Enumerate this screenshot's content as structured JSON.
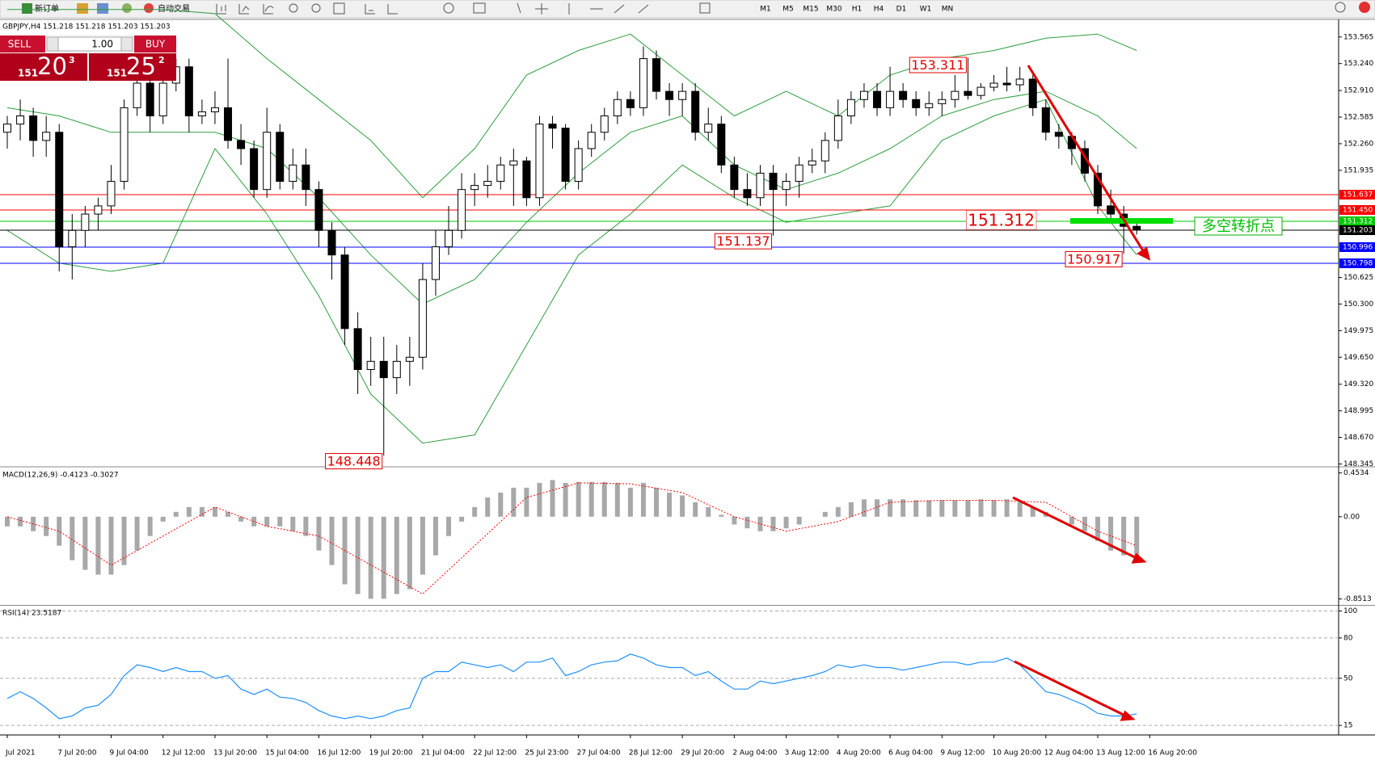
{
  "toolbar": {
    "new_order": "新订单",
    "auto_trading": "自动交易",
    "timeframes": [
      "M1",
      "M5",
      "M15",
      "M30",
      "H1",
      "H4",
      "D1",
      "W1",
      "MN"
    ]
  },
  "trade_panel": {
    "sell": "SELL",
    "lot": "1.00",
    "buy": "BUY",
    "bid": {
      "big": "151",
      "mid": "20",
      "small": "3"
    },
    "ask": {
      "big": "151",
      "mid": "25",
      "small": "2"
    }
  },
  "chart_data": [
    {
      "type": "candlestick",
      "title": "GBPJPY,H4  151.218 151.218 151.203 151.203",
      "categories": [
        "Jul 2021",
        null,
        null,
        null,
        "7 Jul 20:00",
        null,
        null,
        null,
        "9 Jul 04:00",
        null,
        null,
        null,
        "12 Jul 12:00",
        null,
        null,
        null,
        "13 Jul 20:00",
        null,
        null,
        null,
        "15 Jul 04:00",
        null,
        null,
        null,
        "16 Jul 12:00",
        null,
        null,
        null,
        "19 Jul 20:00",
        null,
        null,
        null,
        "21 Jul 04:00",
        null,
        null,
        null,
        "22 Jul 12:00",
        null,
        null,
        null,
        "25 Jul 23:00",
        null,
        null,
        null,
        "27 Jul 04:00",
        null,
        null,
        null,
        "28 Jul 12:00",
        null,
        null,
        null,
        "29 Jul 20:00",
        null,
        null,
        null,
        "2 Aug 04:00",
        null,
        null,
        null,
        "3 Aug 12:00",
        null,
        null,
        null,
        "4 Aug 20:00",
        null,
        null,
        null,
        "6 Aug 04:00",
        null,
        null,
        null,
        "9 Aug 12:00",
        null,
        null,
        null,
        "10 Aug 20:00",
        null,
        null,
        null,
        "12 Aug 04:00",
        null,
        null,
        null,
        "13 Aug 12:00",
        null,
        null,
        null,
        "16 Aug 20:00"
      ],
      "candles": [
        [
          152.4,
          152.6,
          152.2,
          152.5
        ],
        [
          152.5,
          152.8,
          152.3,
          152.6
        ],
        [
          152.6,
          152.7,
          152.1,
          152.3
        ],
        [
          152.3,
          152.6,
          152.1,
          152.4
        ],
        [
          152.4,
          152.5,
          150.7,
          151.0
        ],
        [
          151.0,
          151.4,
          150.6,
          151.2
        ],
        [
          151.2,
          151.5,
          151.0,
          151.4
        ],
        [
          151.4,
          151.6,
          151.2,
          151.5
        ],
        [
          151.5,
          152.0,
          151.4,
          151.8
        ],
        [
          151.8,
          152.8,
          151.7,
          152.7
        ],
        [
          152.7,
          153.4,
          152.6,
          153.0
        ],
        [
          153.0,
          153.1,
          152.4,
          152.6
        ],
        [
          152.6,
          153.2,
          152.5,
          153.0
        ],
        [
          153.0,
          153.3,
          152.9,
          153.2
        ],
        [
          153.2,
          153.3,
          152.4,
          152.6
        ],
        [
          152.6,
          152.8,
          152.5,
          152.65
        ],
        [
          152.65,
          152.9,
          152.5,
          152.7
        ],
        [
          152.7,
          153.3,
          152.2,
          152.3
        ],
        [
          152.3,
          152.5,
          152.0,
          152.2
        ],
        [
          152.2,
          152.3,
          151.6,
          151.7
        ],
        [
          151.7,
          152.7,
          151.6,
          152.4
        ],
        [
          152.4,
          152.5,
          151.7,
          151.8
        ],
        [
          151.8,
          152.2,
          151.7,
          152.0
        ],
        [
          152.0,
          152.2,
          151.5,
          151.7
        ],
        [
          151.7,
          151.8,
          151.0,
          151.2
        ],
        [
          151.2,
          151.3,
          150.6,
          150.9
        ],
        [
          150.9,
          151.0,
          149.8,
          150.0
        ],
        [
          150.0,
          150.2,
          149.2,
          149.5
        ],
        [
          149.5,
          149.9,
          149.3,
          149.6
        ],
        [
          149.6,
          149.9,
          148.448,
          149.4
        ],
        [
          149.4,
          149.8,
          149.2,
          149.6
        ],
        [
          149.6,
          149.9,
          149.3,
          149.65
        ],
        [
          149.65,
          150.8,
          149.5,
          150.6
        ],
        [
          150.6,
          151.2,
          150.4,
          151.0
        ],
        [
          151.0,
          151.5,
          150.9,
          151.2
        ],
        [
          151.2,
          151.9,
          151.1,
          151.7
        ],
        [
          151.7,
          151.9,
          151.5,
          151.75
        ],
        [
          151.75,
          152.0,
          151.6,
          151.8
        ],
        [
          151.8,
          152.1,
          151.7,
          152.0
        ],
        [
          152.0,
          152.2,
          151.5,
          152.05
        ],
        [
          152.05,
          152.1,
          151.5,
          151.6
        ],
        [
          151.6,
          152.6,
          151.5,
          152.5
        ],
        [
          152.5,
          152.6,
          152.2,
          152.45
        ],
        [
          152.45,
          152.5,
          151.7,
          151.8
        ],
        [
          151.8,
          152.3,
          151.7,
          152.2
        ],
        [
          152.2,
          152.5,
          152.1,
          152.4
        ],
        [
          152.4,
          152.7,
          152.3,
          152.6
        ],
        [
          152.6,
          152.9,
          152.5,
          152.8
        ],
        [
          152.8,
          152.9,
          152.6,
          152.7
        ],
        [
          152.7,
          153.45,
          152.6,
          153.3
        ],
        [
          153.3,
          153.4,
          152.8,
          152.9
        ],
        [
          152.9,
          153.0,
          152.6,
          152.8
        ],
        [
          152.8,
          153.0,
          152.6,
          152.9
        ],
        [
          152.9,
          153.0,
          152.3,
          152.4
        ],
        [
          152.4,
          152.7,
          152.3,
          152.5
        ],
        [
          152.5,
          152.6,
          151.9,
          152.0
        ],
        [
          152.0,
          152.1,
          151.6,
          151.7
        ],
        [
          151.7,
          151.9,
          151.5,
          151.6
        ],
        [
          151.6,
          152.0,
          151.5,
          151.9
        ],
        [
          151.9,
          152.0,
          151.137,
          151.7
        ],
        [
          151.7,
          151.9,
          151.5,
          151.8
        ],
        [
          151.8,
          152.1,
          151.6,
          152.0
        ],
        [
          152.0,
          152.2,
          151.9,
          152.05
        ],
        [
          152.05,
          152.4,
          151.9,
          152.3
        ],
        [
          152.3,
          152.8,
          152.2,
          152.6
        ],
        [
          152.6,
          152.9,
          152.5,
          152.8
        ],
        [
          152.8,
          153.0,
          152.7,
          152.9
        ],
        [
          152.9,
          153.0,
          152.6,
          152.7
        ],
        [
          152.7,
          153.2,
          152.6,
          152.9
        ],
        [
          152.9,
          153.0,
          152.7,
          152.8
        ],
        [
          152.8,
          152.9,
          152.6,
          152.7
        ],
        [
          152.7,
          152.9,
          152.6,
          152.75
        ],
        [
          152.75,
          152.9,
          152.6,
          152.8
        ],
        [
          152.8,
          153.1,
          152.7,
          152.9
        ],
        [
          152.9,
          153.311,
          152.8,
          152.85
        ],
        [
          152.85,
          153.0,
          152.8,
          152.95
        ],
        [
          152.95,
          153.1,
          152.9,
          153.0
        ],
        [
          153.0,
          153.2,
          152.9,
          152.98
        ],
        [
          152.98,
          153.2,
          152.9,
          153.05
        ],
        [
          153.05,
          153.1,
          152.6,
          152.7
        ],
        [
          152.7,
          152.8,
          152.3,
          152.4
        ],
        [
          152.4,
          152.5,
          152.2,
          152.35
        ],
        [
          152.35,
          152.4,
          152.0,
          152.2
        ],
        [
          152.2,
          152.3,
          151.8,
          151.9
        ],
        [
          151.9,
          152.0,
          151.4,
          151.5
        ],
        [
          151.5,
          151.7,
          151.3,
          151.4
        ],
        [
          151.4,
          151.5,
          150.917,
          151.25
        ],
        [
          151.25,
          151.35,
          151.15,
          151.203
        ],
        null
      ],
      "up_color": "#ffffff",
      "down_color": "#000000",
      "ylim": [
        148.33,
        153.77
      ],
      "yticks": [
        153.565,
        {
          "value": 153.24,
          "label": "153.240"
        },
        {
          "value": 152.91,
          "label": "152.910"
        },
        152.585,
        {
          "value": 152.26,
          "label": "152.260"
        },
        151.935,
        150.625,
        {
          "value": 150.3,
          "label": "150.300"
        },
        149.975,
        {
          "value": 149.65,
          "label": "149.650"
        },
        {
          "value": 149.32,
          "label": "149.320"
        },
        148.995,
        {
          "value": 148.67,
          "label": "148.670"
        },
        148.345
      ],
      "grid": false,
      "bands": {
        "color": "#2e9e3e",
        "x": [
          0,
          4,
          8,
          12,
          16,
          20,
          24,
          28,
          32,
          36,
          40,
          44,
          48,
          52,
          56,
          60,
          64,
          68,
          72,
          76,
          80,
          84,
          87
        ],
        "upper": [
          153.9,
          153.9,
          153.9,
          153.9,
          153.85,
          153.3,
          152.8,
          152.3,
          151.6,
          152.2,
          153.1,
          153.4,
          153.6,
          153.1,
          152.6,
          152.9,
          152.6,
          153.1,
          153.3,
          153.4,
          153.55,
          153.6,
          153.4
        ],
        "middle": [
          152.7,
          152.6,
          152.4,
          152.4,
          152.4,
          152.2,
          151.6,
          150.9,
          150.3,
          150.6,
          151.3,
          151.9,
          152.4,
          152.6,
          152.0,
          151.7,
          151.9,
          152.2,
          152.6,
          152.8,
          152.9,
          152.6,
          152.2
        ],
        "lower": [
          151.2,
          150.8,
          150.7,
          150.8,
          152.2,
          151.4,
          150.4,
          149.2,
          148.6,
          148.7,
          149.8,
          150.9,
          151.4,
          152.0,
          151.6,
          151.3,
          151.4,
          151.5,
          152.3,
          152.6,
          152.8,
          151.5,
          150.9
        ]
      },
      "levels": [
        {
          "value": 151.637,
          "color": "#ff0000"
        },
        {
          "value": 151.45,
          "label": "151.450",
          "color": "#ff0000"
        },
        {
          "value": 151.312,
          "color": "#00c800"
        },
        {
          "value": 151.203,
          "color": "#000000"
        },
        {
          "value": 150.996,
          "color": "#0000ff"
        },
        {
          "value": 150.798,
          "color": "#0000ff"
        }
      ],
      "annotations": [
        153.311,
        151.137,
        148.448,
        150.917
      ],
      "pivot_label": "多空转折点"
    },
    {
      "type": "bar",
      "title": "MACD(12,26,9) -0.4123 -0.3027",
      "color": "#a8a8a8",
      "values": [
        -0.1,
        -0.1,
        -0.15,
        -0.2,
        -0.3,
        -0.45,
        -0.55,
        -0.6,
        -0.6,
        -0.5,
        -0.35,
        -0.2,
        -0.05,
        0.05,
        0.1,
        0.1,
        0.1,
        0.05,
        -0.05,
        -0.1,
        -0.1,
        -0.1,
        -0.15,
        -0.2,
        -0.35,
        -0.5,
        -0.7,
        -0.8,
        -0.85,
        -0.85,
        -0.8,
        -0.75,
        -0.6,
        -0.4,
        -0.2,
        -0.05,
        0.1,
        0.2,
        0.25,
        0.3,
        0.3,
        0.35,
        0.38,
        0.35,
        0.36,
        0.36,
        0.36,
        0.35,
        0.3,
        0.35,
        0.3,
        0.25,
        0.22,
        0.15,
        0.1,
        0.02,
        -0.08,
        -0.12,
        -0.15,
        -0.15,
        -0.12,
        -0.08,
        0.0,
        0.05,
        0.1,
        0.15,
        0.18,
        0.18,
        0.18,
        0.18,
        0.17,
        0.17,
        0.17,
        0.17,
        0.17,
        0.18,
        0.17,
        0.18,
        0.15,
        0.1,
        0.05,
        0.0,
        -0.08,
        -0.15,
        -0.25,
        -0.35,
        -0.4,
        -0.41,
        null
      ],
      "signal": {
        "color": "#ff0000",
        "x": [
          0,
          4,
          8,
          12,
          16,
          20,
          24,
          28,
          32,
          36,
          40,
          44,
          48,
          52,
          56,
          60,
          64,
          68,
          72,
          76,
          80,
          84,
          87
        ],
        "values": [
          0.0,
          -0.15,
          -0.5,
          -0.2,
          0.1,
          -0.1,
          -0.2,
          -0.5,
          -0.8,
          -0.3,
          0.2,
          0.35,
          0.34,
          0.25,
          0.0,
          -0.15,
          -0.05,
          0.15,
          0.17,
          0.17,
          0.15,
          -0.15,
          -0.3
        ]
      },
      "ylim": [
        -0.905,
        0.5
      ],
      "yticks": [
        0.4534,
        {
          "value": 0,
          "label": "0.00"
        },
        -0.8513
      ],
      "grid": false
    },
    {
      "type": "line",
      "title": "RSI(14) 23.5187",
      "color": "#1e90ff",
      "values": [
        35,
        40,
        35,
        28,
        20,
        22,
        28,
        30,
        38,
        52,
        60,
        58,
        55,
        58,
        55,
        55,
        50,
        52,
        42,
        38,
        42,
        36,
        35,
        32,
        26,
        22,
        20,
        22,
        20,
        22,
        26,
        28,
        50,
        55,
        55,
        62,
        60,
        58,
        60,
        55,
        62,
        62,
        65,
        52,
        55,
        60,
        62,
        63,
        68,
        65,
        60,
        58,
        58,
        52,
        55,
        48,
        42,
        42,
        48,
        46,
        48,
        50,
        52,
        55,
        60,
        58,
        60,
        58,
        58,
        56,
        58,
        60,
        62,
        62,
        60,
        62,
        62,
        65,
        60,
        50,
        40,
        38,
        34,
        30,
        24,
        22,
        22,
        23.5187,
        null
      ],
      "ylim": [
        8.5,
        103.3
      ],
      "yticks": [
        100,
        80,
        50,
        15
      ],
      "grid": true
    }
  ]
}
